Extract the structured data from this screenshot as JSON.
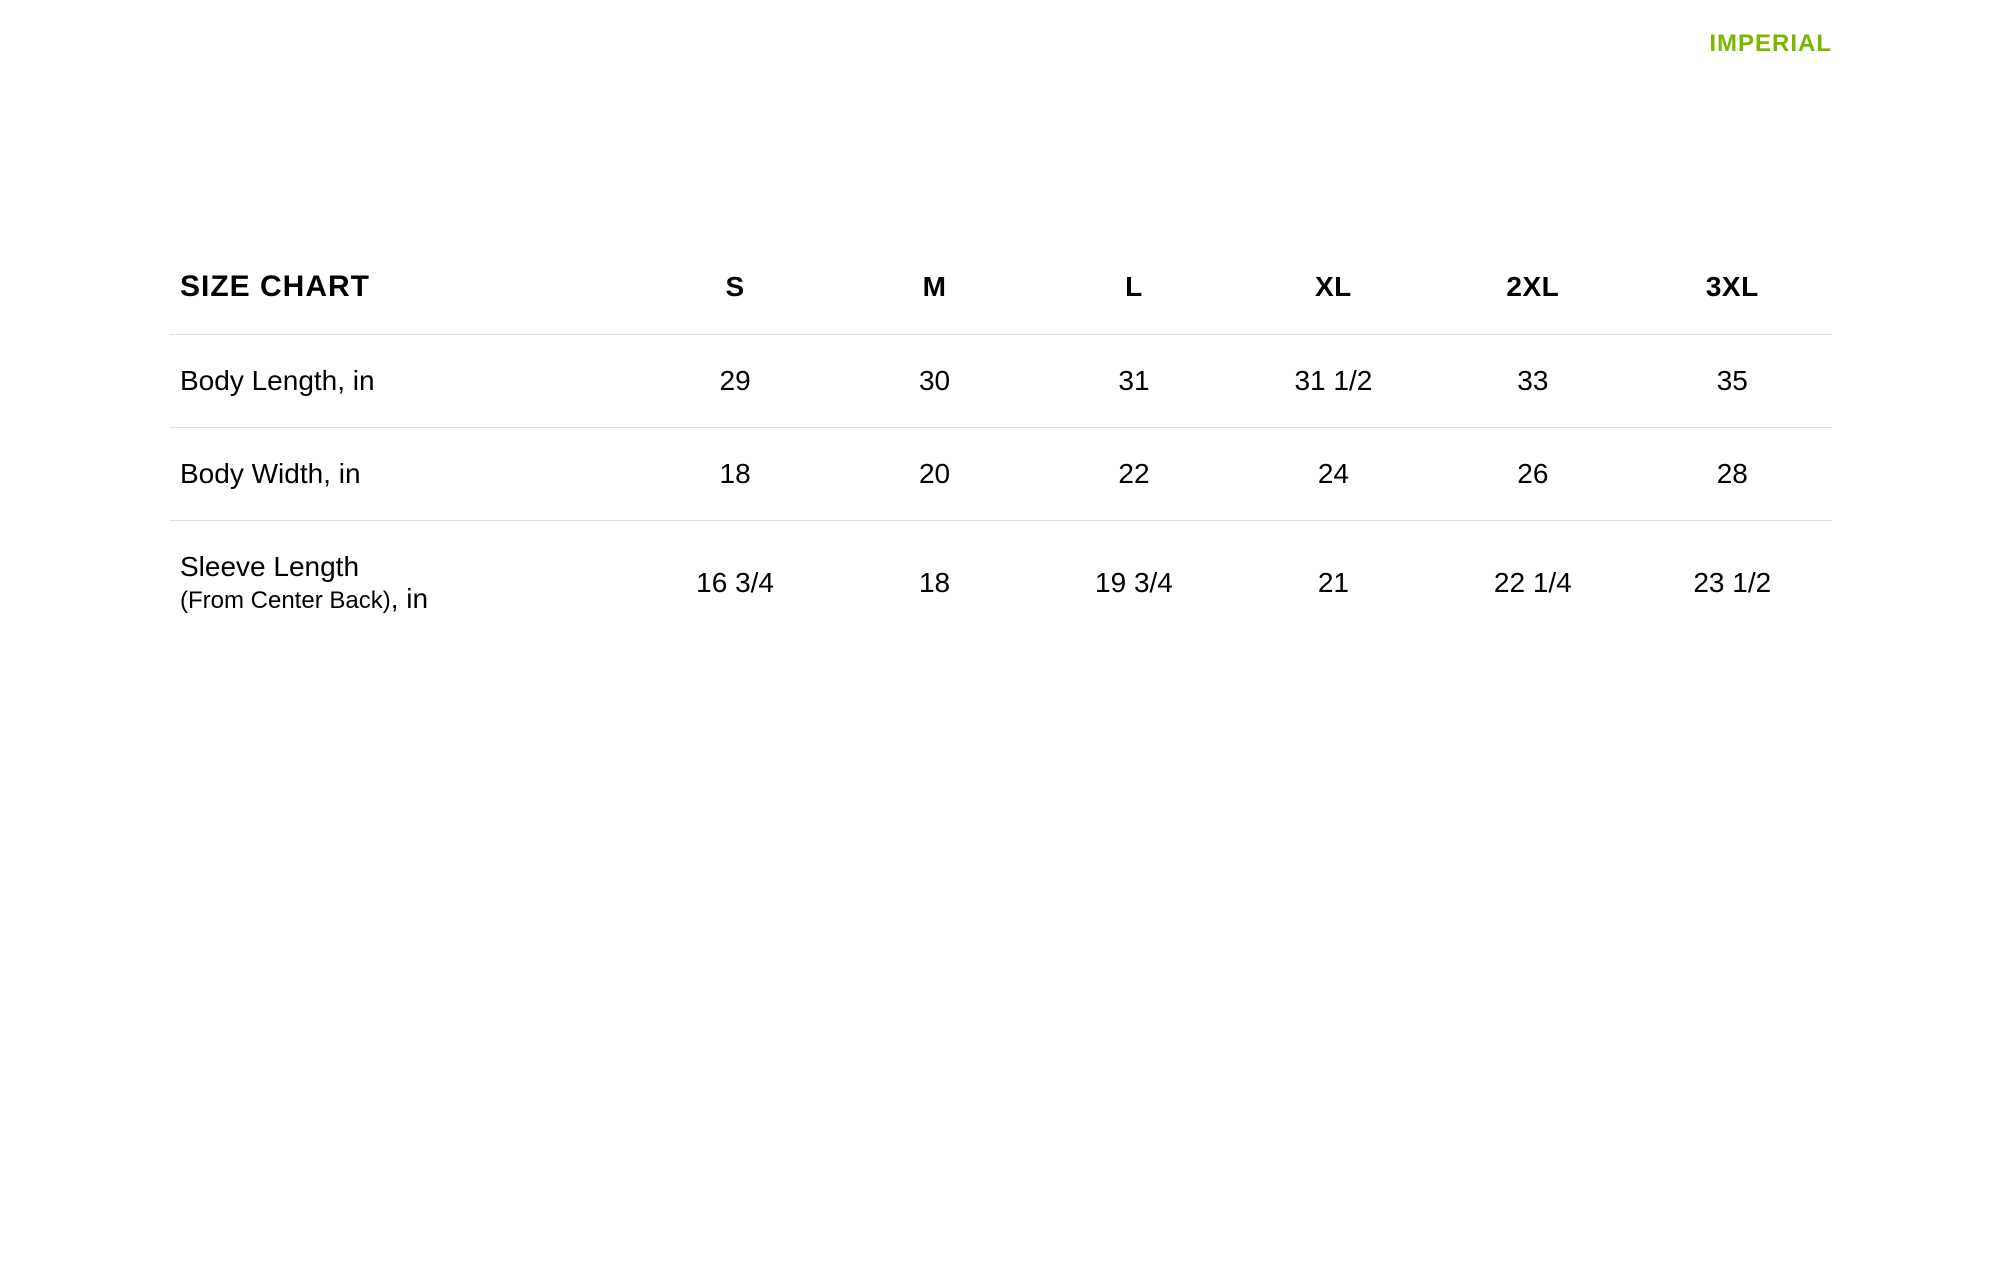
{
  "unit_toggle": {
    "label": "IMPERIAL",
    "color": "#7ab800"
  },
  "table": {
    "title": "SIZE CHART",
    "columns": [
      "S",
      "M",
      "L",
      "XL",
      "2XL",
      "3XL"
    ],
    "rows": [
      {
        "label": "Body Length, in",
        "values": [
          "29",
          "30",
          "31",
          "31 1/2",
          "33",
          "35"
        ]
      },
      {
        "label": "Body Width, in",
        "values": [
          "18",
          "20",
          "22",
          "24",
          "26",
          "28"
        ]
      },
      {
        "label_main": "Sleeve Length",
        "label_sub": "(From Center Back)",
        "label_unit": ", in",
        "values": [
          "16 3/4",
          "18",
          "19 3/4",
          "21",
          "22 1/4",
          "23 1/2"
        ]
      }
    ],
    "border_color": "#e0e0e0",
    "text_color": "#000000",
    "background_color": "#ffffff"
  }
}
